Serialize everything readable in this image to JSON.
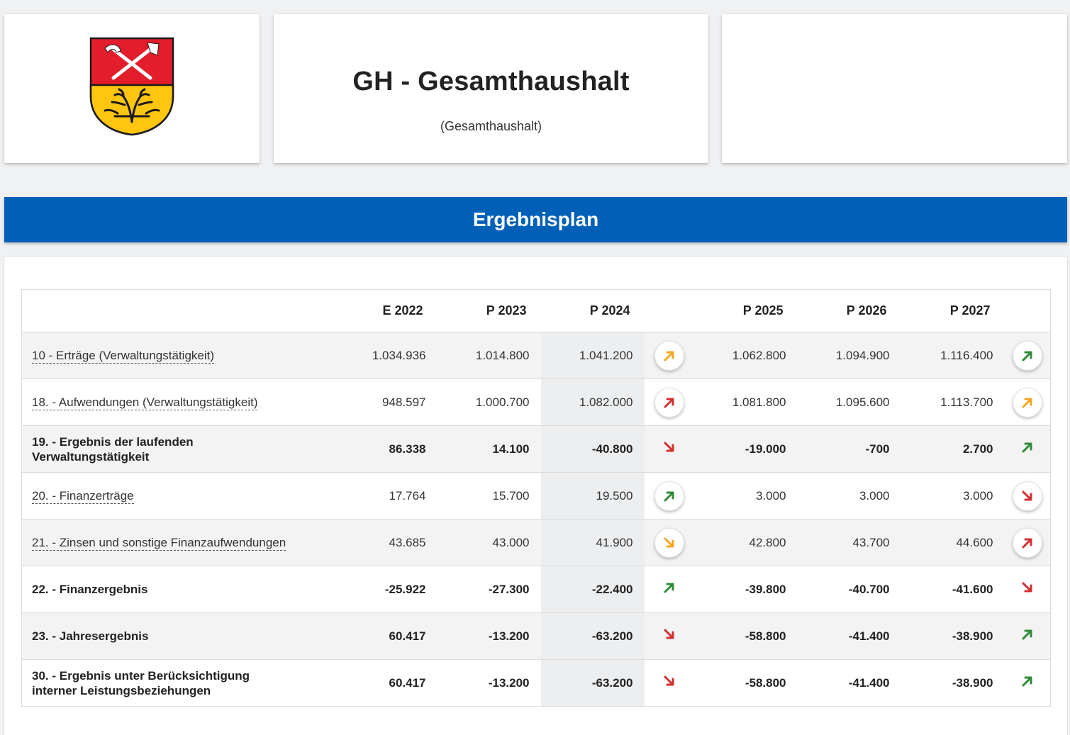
{
  "header": {
    "title": "GH - Gesamthaushalt",
    "subtitle": "(Gesamthaushalt)",
    "crest_colors": {
      "top": "#e31d2b",
      "bottom": "#ffc50f",
      "outline": "#1a1a1a",
      "tools": "#ffffff"
    }
  },
  "section": {
    "title": "Ergebnisplan"
  },
  "table": {
    "columns": [
      "E 2022",
      "P 2023",
      "P 2024",
      "P 2025",
      "P 2026",
      "P 2027"
    ],
    "rows": [
      {
        "label": "10 - Erträge (Verwaltungstätigkeit)",
        "values": [
          "1.034.936",
          "1.014.800",
          "1.041.200",
          "1.062.800",
          "1.094.900",
          "1.116.400"
        ]
      },
      {
        "label": "18. - Aufwendungen (Verwaltungstätigkeit)",
        "values": [
          "948.597",
          "1.000.700",
          "1.082.000",
          "1.081.800",
          "1.095.600",
          "1.113.700"
        ]
      },
      {
        "label_line1": "19. - Ergebnis der laufenden",
        "label_line2": "Verwaltungstätigkeit",
        "values": [
          "86.338",
          "14.100",
          "-40.800",
          "-19.000",
          "-700",
          "2.700"
        ]
      },
      {
        "label": "20. - Finanzerträge",
        "values": [
          "17.764",
          "15.700",
          "19.500",
          "3.000",
          "3.000",
          "3.000"
        ]
      },
      {
        "label": "21. - Zinsen und sonstige Finanzaufwendungen",
        "values": [
          "43.685",
          "43.000",
          "41.900",
          "42.800",
          "43.700",
          "44.600"
        ]
      },
      {
        "label": "22. - Finanzergebnis",
        "values": [
          "-25.922",
          "-27.300",
          "-22.400",
          "-39.800",
          "-40.700",
          "-41.600"
        ]
      },
      {
        "label": "23. - Jahresergebnis",
        "values": [
          "60.417",
          "-13.200",
          "-63.200",
          "-58.800",
          "-41.400",
          "-38.900"
        ]
      },
      {
        "label_line1": "30. - Ergebnis unter Berücksichtigung",
        "label_line2": "interner Leistungsbeziehungen",
        "values": [
          "60.417",
          "-13.200",
          "-63.200",
          "-58.800",
          "-41.400",
          "-38.900"
        ]
      }
    ],
    "trend_colors": {
      "up-green": "#2e8b37",
      "up-orange": "#f5a623",
      "up-red": "#d32f2f",
      "down-red": "#d32f2f",
      "down-orange": "#f5a623"
    },
    "trends": [
      [
        "up-orange",
        "up-green"
      ],
      [
        "up-red",
        "up-orange"
      ],
      [
        "down-red",
        "up-green"
      ],
      [
        "up-green",
        "down-red"
      ],
      [
        "down-orange",
        "up-red"
      ],
      [
        "up-green",
        "down-red"
      ],
      [
        "down-red",
        "up-green"
      ],
      [
        "down-red",
        "up-green"
      ]
    ]
  }
}
